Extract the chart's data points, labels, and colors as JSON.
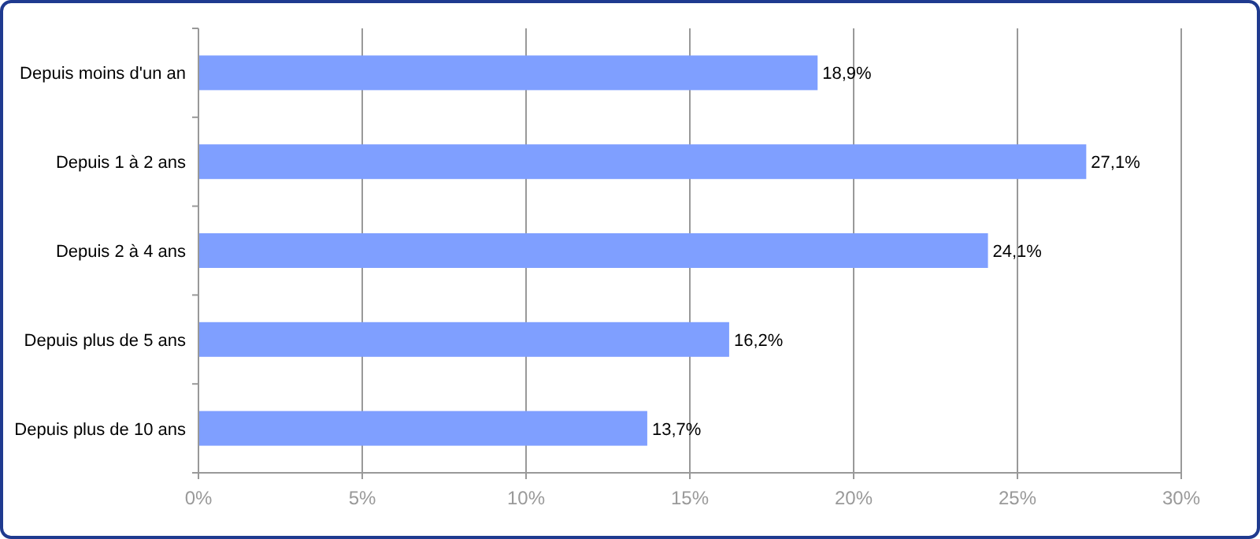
{
  "chart_data": {
    "type": "bar",
    "orientation": "horizontal",
    "categories": [
      "Depuis moins d'un an",
      "Depuis 1 à 2 ans",
      "Depuis 2 à 4 ans",
      "Depuis plus de 5 ans",
      "Depuis plus de 10 ans"
    ],
    "values": [
      18.9,
      27.1,
      24.1,
      16.2,
      13.7
    ],
    "value_labels": [
      "18,9%",
      "27,1%",
      "24,1%",
      "16,2%",
      "13,7%"
    ],
    "color": "#7f9fff",
    "xlim": [
      0,
      30
    ],
    "xticks": [
      {
        "value": 0,
        "label": "0%"
      },
      {
        "value": 5,
        "label": "5%"
      },
      {
        "value": 10,
        "label": "10%"
      },
      {
        "value": 15,
        "label": "15%"
      },
      {
        "value": 20,
        "label": "20%"
      },
      {
        "value": 25,
        "label": "25%"
      },
      {
        "value": 30,
        "label": "30%"
      }
    ],
    "grid": "x"
  }
}
